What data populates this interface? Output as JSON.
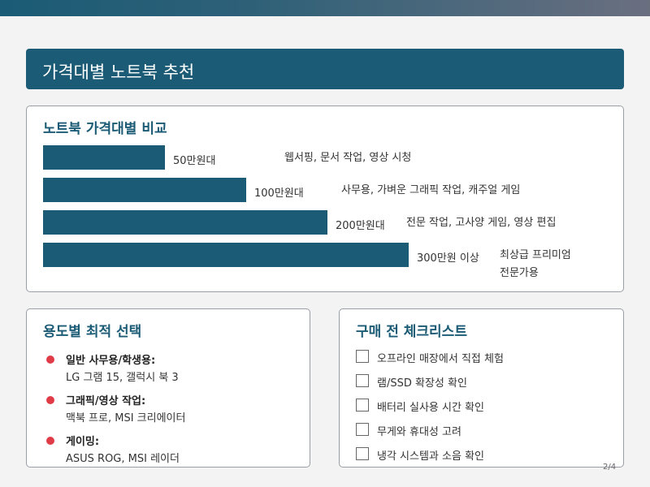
{
  "title": "가격대별 노트북 추천",
  "compare": {
    "title": "노트북 가격대별 비교",
    "rows": [
      {
        "price": "50만원대",
        "desc": "웹서핑, 문서 작업, 영상 시청",
        "level": 0.3
      },
      {
        "price": "100만원대",
        "desc": "사무용, 가벼운 그래픽 작업, 캐주얼 게임",
        "level": 0.5
      },
      {
        "price": "200만원대",
        "desc": "전문 작업, 고사양 게임, 영상 편집",
        "level": 0.7
      },
      {
        "price": "300만원 이상",
        "desc1": "최상급 프리미엄",
        "desc2": "전문가용",
        "level": 0.9
      }
    ]
  },
  "usage": {
    "title": "용도별 최적 선택",
    "items": [
      {
        "head": "일반 사무용/학생용:",
        "sub": "LG 그램 15, 갤럭시 북 3"
      },
      {
        "head": "그래픽/영상 작업:",
        "sub": "맥북 프로, MSI 크리에이터"
      },
      {
        "head": "게이밍:",
        "sub": "ASUS ROG, MSI 레이더"
      }
    ]
  },
  "checklist": {
    "title": "구매 전 체크리스트",
    "items": [
      "오프라인 매장에서 직접 체험",
      "램/SSD 확장성 확인",
      "배터리 실사용 시간 확인",
      "무게와 휴대성 고려",
      "냉각 시스템과 소음 확인"
    ]
  },
  "page_number": "2/4",
  "colors": {
    "accent": "#1b5b75",
    "bullet": "#e03c48"
  }
}
